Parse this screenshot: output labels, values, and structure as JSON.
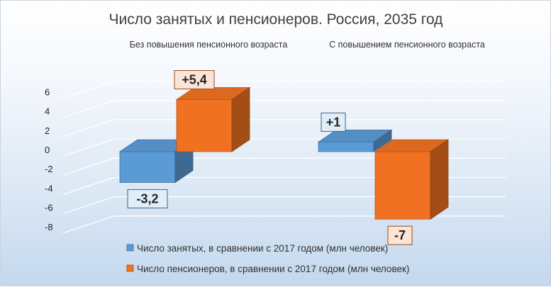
{
  "chart_data": {
    "type": "bar",
    "title": "Число занятых и пенсионеров. Россия, 2035 год",
    "categories": [
      "Без повышения пенсионного возраста",
      "С повышением пенсионного возраста"
    ],
    "series": [
      {
        "name": "Число занятых, в сравнении с 2017 годом (млн человек)",
        "values": [
          -3.2,
          1
        ],
        "labels": [
          "-3,2",
          "+1"
        ],
        "color": "#5b9bd5"
      },
      {
        "name": "Число пенсионеров, в сравнении с 2017 годом (млн человек)",
        "values": [
          5.4,
          -7
        ],
        "labels": [
          "+5,4",
          "-7"
        ],
        "color": "#f07122"
      }
    ],
    "ylim": [
      -8,
      6
    ],
    "yticks": [
      6,
      4,
      2,
      0,
      -2,
      -4,
      -6,
      -8
    ],
    "ytick_labels": [
      "6",
      "4",
      "2",
      "0",
      "-2",
      "-4",
      "-6",
      "-8"
    ],
    "grid": true,
    "legend_position": "bottom",
    "style": "3d-column"
  }
}
